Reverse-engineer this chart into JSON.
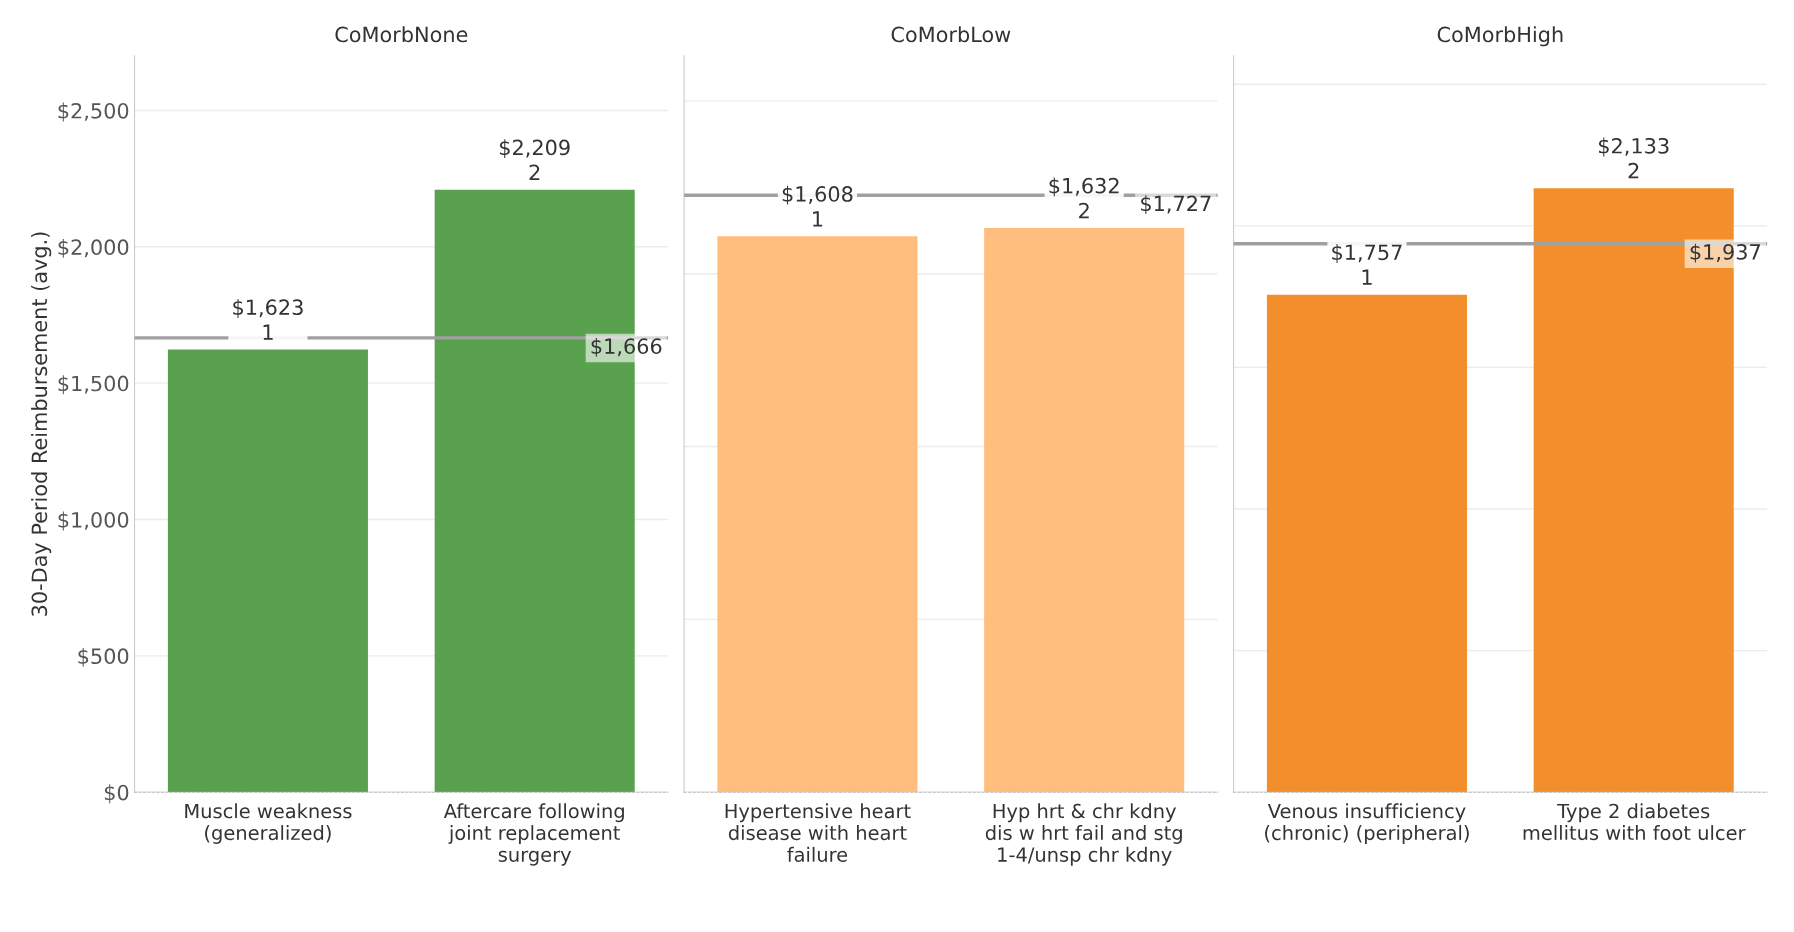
{
  "chart_data": [
    {
      "type": "bar",
      "title": "CoMorbNone",
      "ylabel": "30-Day Period Reimbursement (avg.)",
      "categories": [
        "Muscle weakness\n(generalized)",
        "Aftercare following\njoint replacement\nsurgery"
      ],
      "values": [
        1623,
        2209
      ],
      "value_labels": [
        "$1,623\n1",
        "$2,209\n2"
      ],
      "color": "#59a14f",
      "ylim": [
        0,
        2700
      ],
      "yticks": [
        {
          "value": 0,
          "label": "$0"
        },
        {
          "value": 500,
          "label": "$500"
        },
        {
          "value": 1000,
          "label": "$1,000"
        },
        {
          "value": 1500,
          "label": "$1,500"
        },
        {
          "value": 2000,
          "label": "$2,000"
        },
        {
          "value": 2500,
          "label": "$2,500"
        }
      ],
      "grid": "y",
      "ref_lines": [
        {
          "axis": "y",
          "value": 1666,
          "label": "$1,666",
          "color": "#a0a0a0"
        }
      ]
    },
    {
      "type": "bar",
      "title": "CoMorbLow",
      "categories": [
        "Hypertensive heart\ndisease with heart\nfailure",
        "Hyp hrt & chr kdny\ndis w hrt fail and stg\n1-4/unsp chr kdny"
      ],
      "values": [
        1608,
        1632
      ],
      "value_labels": [
        "$1,608\n1",
        "$1,632\n2"
      ],
      "color": "#ffbe7d",
      "ylim": [
        0,
        2130
      ],
      "yticks": [
        {
          "value": 0,
          "label": null
        },
        {
          "value": 500,
          "label": null
        },
        {
          "value": 1000,
          "label": null
        },
        {
          "value": 1500,
          "label": null
        },
        {
          "value": 2000,
          "label": null
        }
      ],
      "tick_labels": "x",
      "grid": "y",
      "ref_lines": [
        {
          "axis": "y",
          "value": 1727,
          "label": "$1,727",
          "color": "#a0a0a0"
        }
      ]
    },
    {
      "type": "bar",
      "title": "CoMorbHigh",
      "categories": [
        "Venous insufficiency\n(chronic) (peripheral)",
        "Type 2 diabetes\nmellitus with foot ulcer"
      ],
      "values": [
        1757,
        2133
      ],
      "value_labels": [
        "$1,757\n1",
        "$2,133\n2"
      ],
      "color": "#f28e2b",
      "ylim": [
        0,
        2600
      ],
      "yticks": [
        {
          "value": 0,
          "label": null
        },
        {
          "value": 500,
          "label": null
        },
        {
          "value": 1000,
          "label": null
        },
        {
          "value": 1500,
          "label": null
        },
        {
          "value": 2000,
          "label": null
        },
        {
          "value": 2500,
          "label": null
        }
      ],
      "tick_labels": "x",
      "grid": "y",
      "ref_lines": [
        {
          "axis": "y",
          "value": 1937,
          "label": "$1,937",
          "color": "#a0a0a0"
        }
      ]
    }
  ]
}
